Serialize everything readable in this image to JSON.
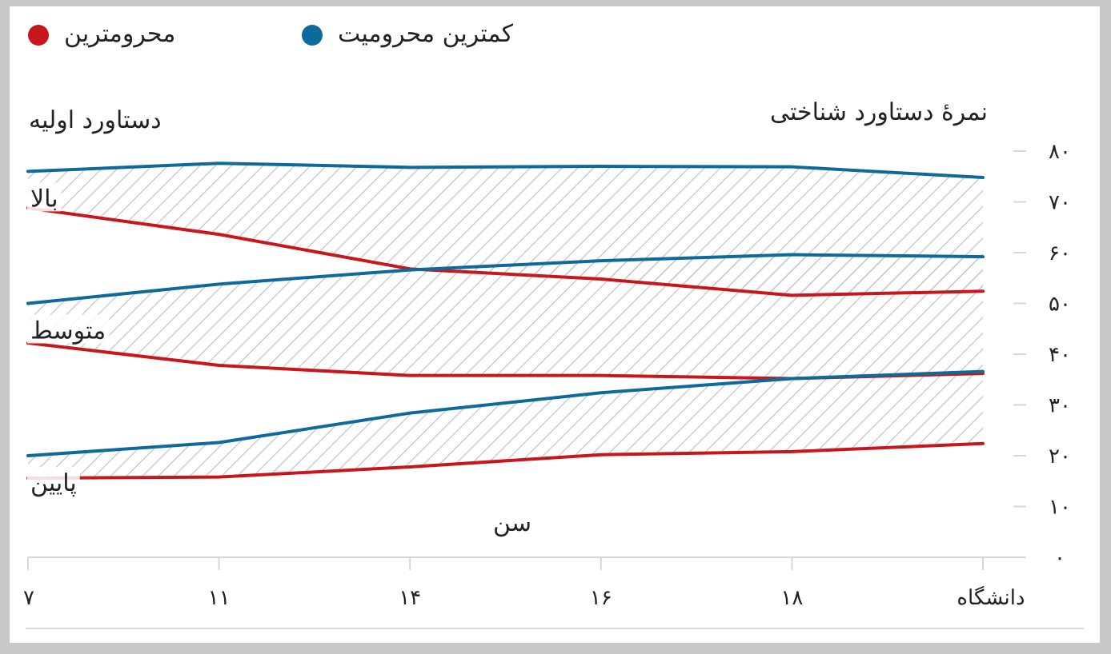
{
  "legend": {
    "most_deprived": "محرومترین",
    "least_deprived": "کمترین محرومیت"
  },
  "colors": {
    "most_deprived": "#c8161d",
    "least_deprived": "#0d6a9c",
    "grid": "#d7d7d7",
    "hatch": "#c7c7c7"
  },
  "chart_data": {
    "type": "line",
    "title": "",
    "ylabel": "نمرهٔ دستاورد شناختی",
    "xlabel": "سن",
    "group_axis_label": "دستاورد اولیه",
    "categories": [
      "۷",
      "۱۱",
      "۱۴",
      "۱۶",
      "۱۸",
      "دانشگاه"
    ],
    "ylim": [
      0,
      80
    ],
    "y_ticks": [
      0,
      10,
      20,
      30,
      40,
      50,
      60,
      70,
      80
    ],
    "y_tick_labels": [
      "۰",
      "۱۰",
      "۲۰",
      "۳۰",
      "۴۰",
      "۵۰",
      "۶۰",
      "۷۰",
      "۸۰"
    ],
    "legend_position": "top",
    "groups": [
      {
        "label": "بالا",
        "least_deprived": [
          76,
          77.6,
          76.8,
          77,
          76.9,
          74.8
        ],
        "most_deprived": [
          68.8,
          63.6,
          56.8,
          54.8,
          51.6,
          52.4
        ]
      },
      {
        "label": "متوسط",
        "least_deprived": [
          50,
          53.8,
          56.6,
          58.4,
          59.6,
          59.2
        ],
        "most_deprived": [
          42.2,
          37.8,
          35.8,
          35.8,
          35.2,
          36.2
        ]
      },
      {
        "label": "پایین",
        "least_deprived": [
          20,
          22.6,
          28.4,
          32.4,
          35.2,
          36.6
        ],
        "most_deprived": [
          15.6,
          15.8,
          17.8,
          20.2,
          20.8,
          22.4
        ]
      }
    ]
  }
}
